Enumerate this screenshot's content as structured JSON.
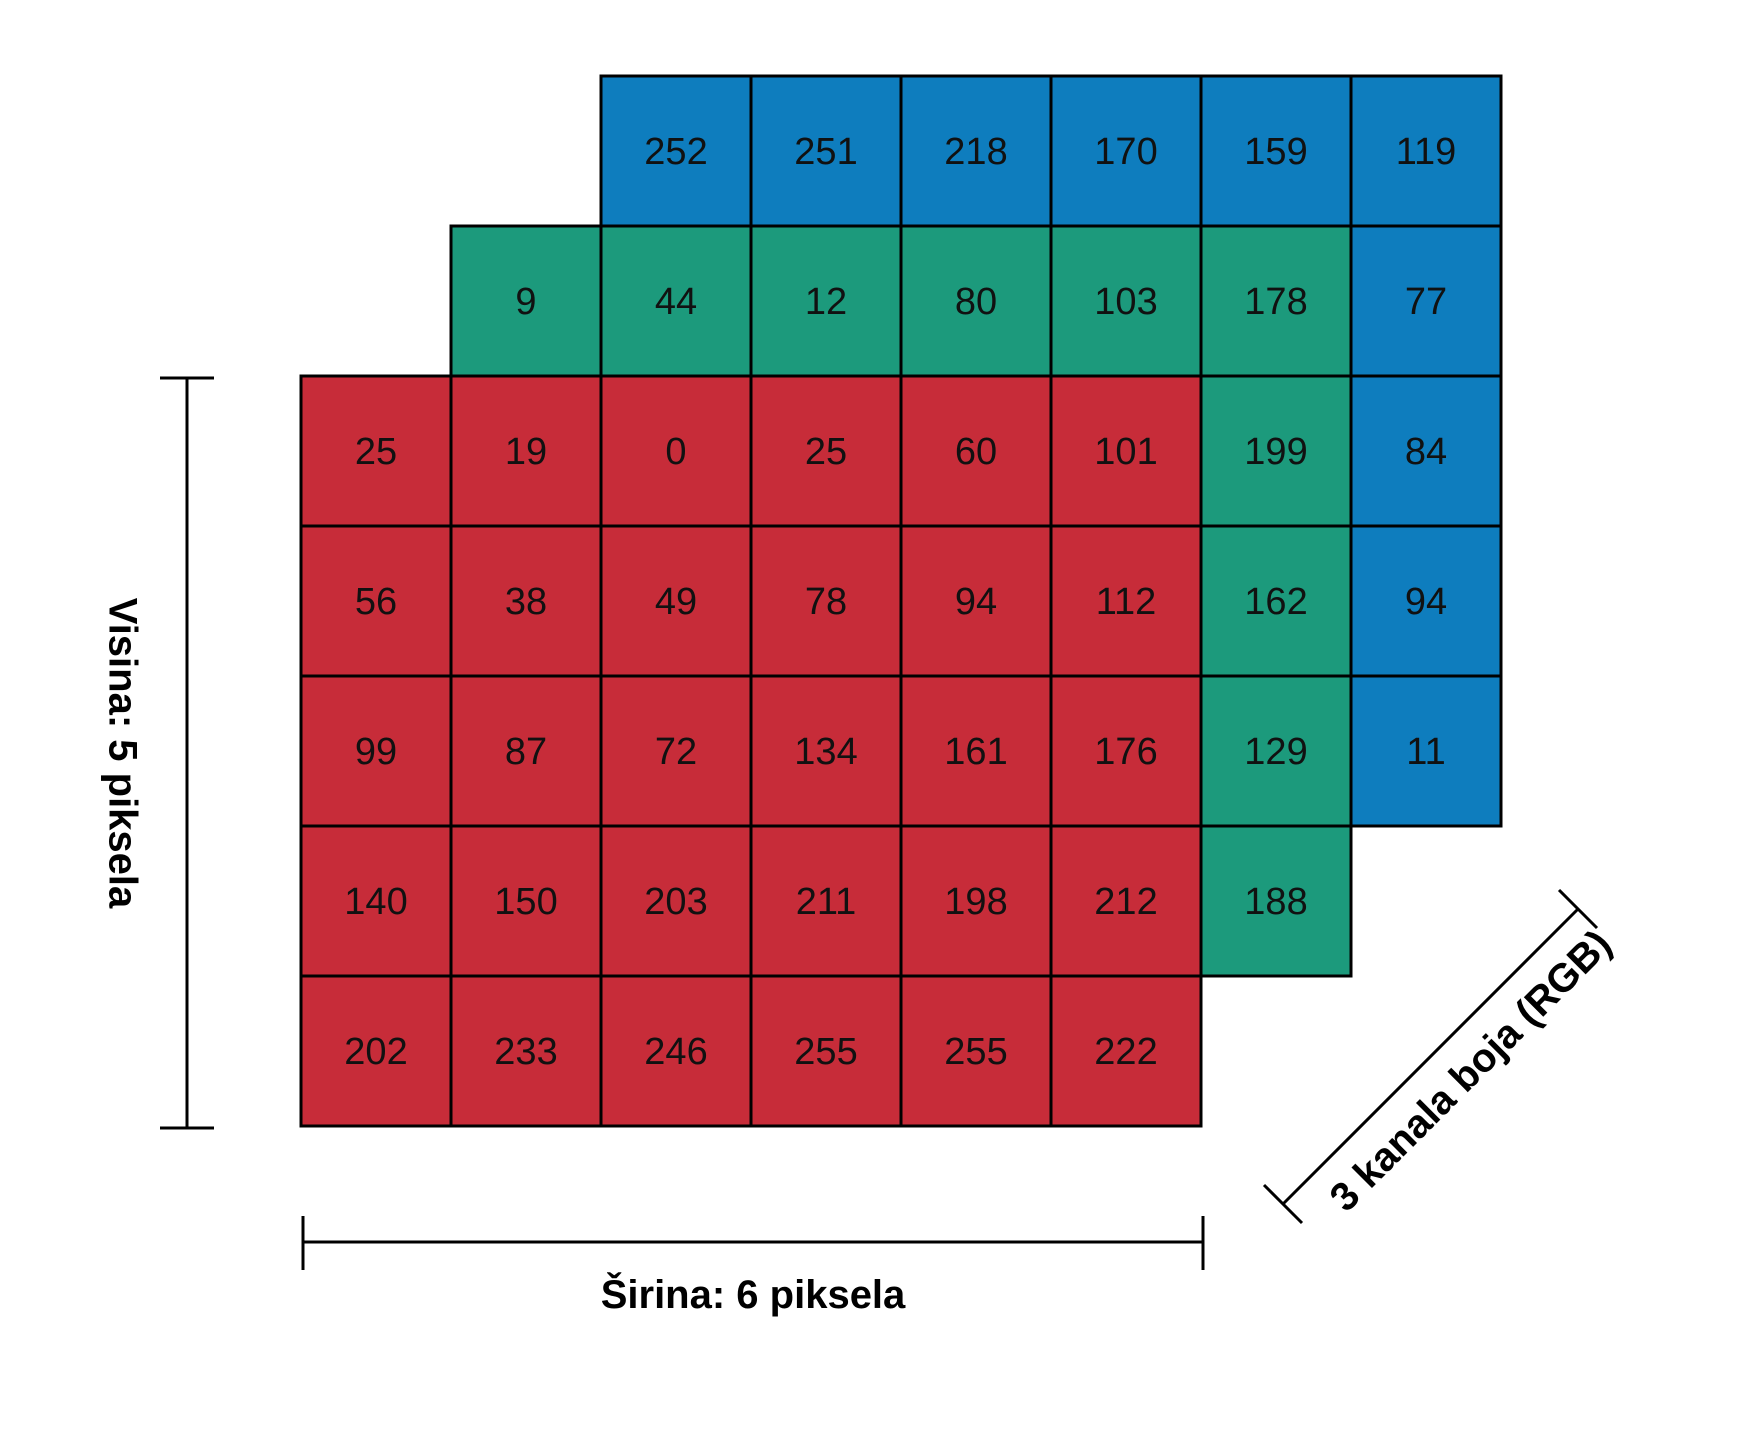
{
  "colors": {
    "red": "#C72C39",
    "green": "#1C9A7C",
    "blue": "#0E7DBE",
    "border": "#000000",
    "text": "#111111"
  },
  "channels": [
    {
      "name": "blue",
      "rows": [
        [
          252,
          251,
          218,
          170,
          159,
          119
        ],
        [
          null,
          null,
          null,
          null,
          null,
          77
        ],
        [
          null,
          null,
          null,
          null,
          null,
          84
        ],
        [
          null,
          null,
          null,
          null,
          null,
          94
        ],
        [
          null,
          null,
          null,
          null,
          null,
          11
        ]
      ]
    },
    {
      "name": "green",
      "rows": [
        [
          9,
          44,
          12,
          80,
          103,
          178
        ],
        [
          null,
          null,
          null,
          null,
          null,
          199
        ],
        [
          null,
          null,
          null,
          null,
          null,
          162
        ],
        [
          null,
          null,
          null,
          null,
          null,
          129
        ],
        [
          null,
          null,
          null,
          null,
          null,
          188
        ]
      ]
    },
    {
      "name": "red",
      "rows": [
        [
          25,
          19,
          0,
          25,
          60,
          101
        ],
        [
          56,
          38,
          49,
          78,
          94,
          112
        ],
        [
          99,
          87,
          72,
          134,
          161,
          176
        ],
        [
          140,
          150,
          203,
          211,
          198,
          212
        ],
        [
          202,
          233,
          246,
          255,
          255,
          222
        ]
      ]
    }
  ],
  "labels": {
    "width": "Širina: 6 piksela",
    "height": "Visina: 5 piksela",
    "channels": "3 kanala boja (RGB)"
  }
}
